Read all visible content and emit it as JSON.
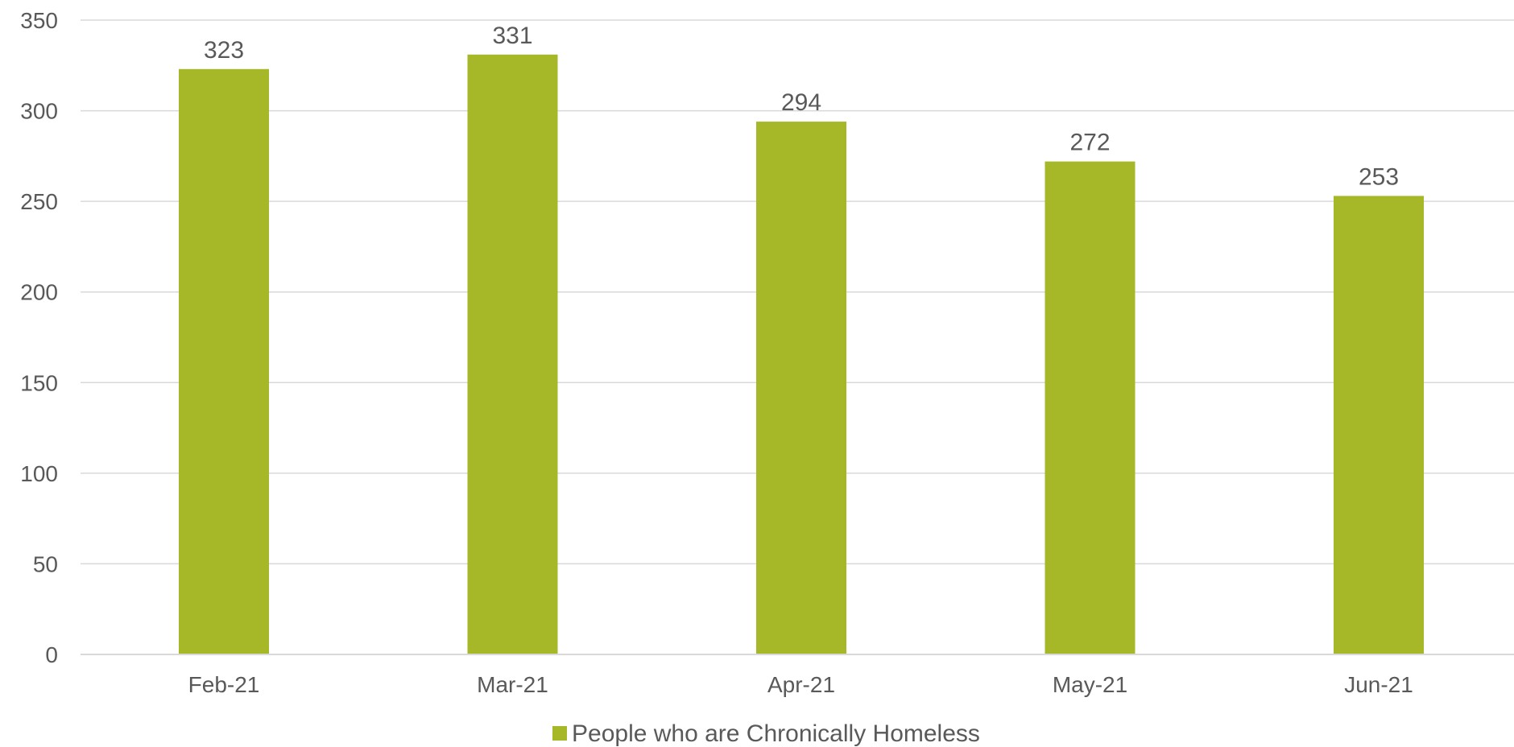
{
  "chart_data": {
    "type": "bar",
    "categories": [
      "Feb-21",
      "Mar-21",
      "Apr-21",
      "May-21",
      "Jun-21"
    ],
    "series": [
      {
        "name": "People who are Chronically Homeless",
        "values": [
          323,
          331,
          294,
          272,
          253
        ],
        "color": "#a6b828"
      }
    ],
    "data_labels": [
      "323",
      "331",
      "294",
      "272",
      "253"
    ],
    "ylim": [
      0,
      350
    ],
    "yticks": [
      0,
      50,
      100,
      150,
      200,
      250,
      300,
      350
    ],
    "grid": true,
    "legend_position": "bottom",
    "title": "",
    "xlabel": "",
    "ylabel": ""
  }
}
